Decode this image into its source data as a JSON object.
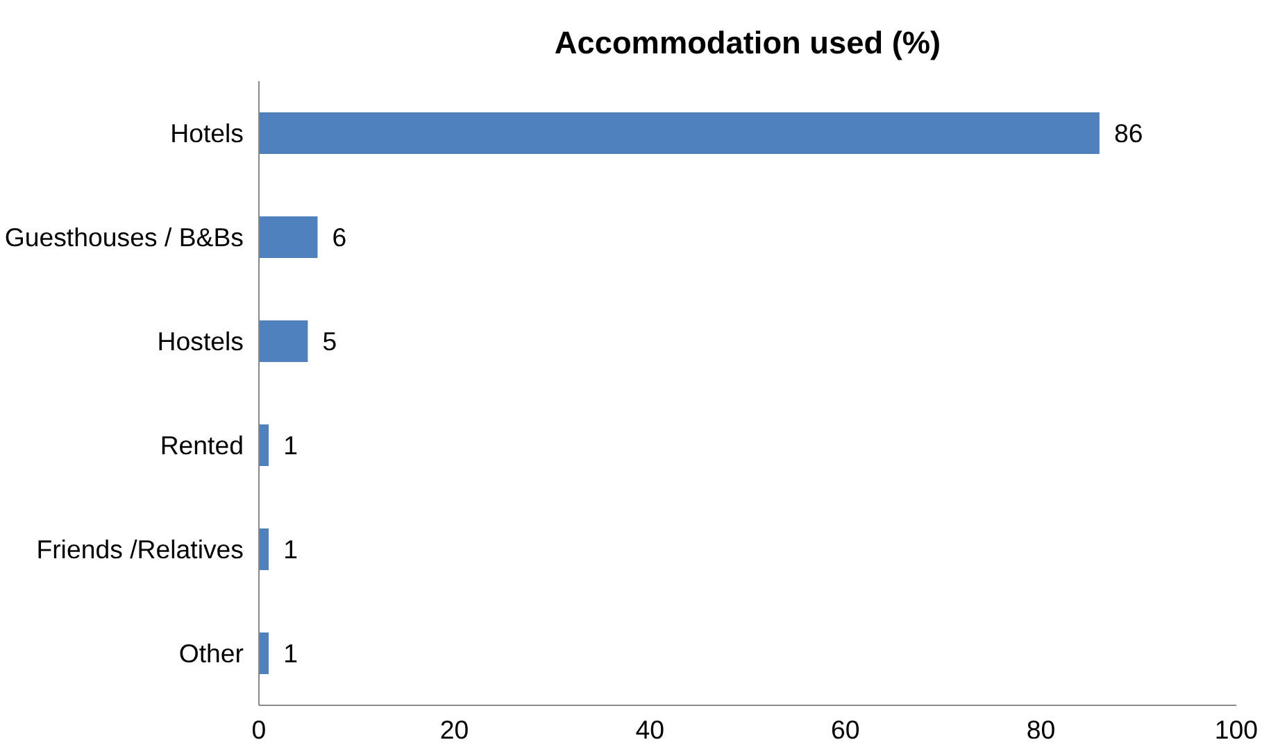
{
  "chart_data": {
    "type": "bar",
    "orientation": "horizontal",
    "title": "Accommodation used (%)",
    "categories": [
      "Hotels",
      "Guesthouses / B&Bs",
      "Hostels",
      "Rented",
      "Friends /Relatives",
      "Other"
    ],
    "values": [
      86,
      6,
      5,
      1,
      1,
      1
    ],
    "color": "#4f81bd",
    "xlim": [
      0,
      100
    ],
    "xticks": [
      0,
      20,
      40,
      60,
      80,
      100
    ],
    "grid": false,
    "data_labels": true
  }
}
